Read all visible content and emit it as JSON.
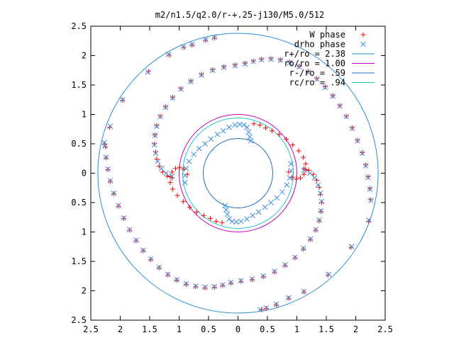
{
  "chart_data": {
    "type": "scatter",
    "title": "m2/n1.5/q2.0/r-+.25-j130/M5.0/512",
    "xlabel": "",
    "ylabel": "",
    "xlim": [
      -2.5,
      2.5
    ],
    "ylim": [
      -2.5,
      2.5
    ],
    "grid": false,
    "legend_position": "top-right",
    "x_tick_labels": [
      "2.5",
      "2",
      "1.5",
      "1",
      "0.5",
      "0",
      "0.5",
      "1",
      "1.5",
      "2",
      "2.5"
    ],
    "y_tick_labels": [
      "2.5",
      "2",
      "1.5",
      "1",
      "0.5",
      "0",
      "0.5",
      "1",
      "1.5",
      "2",
      "2.5"
    ],
    "series": [
      {
        "name": "W phase",
        "marker": "plus",
        "color": "#ff0000",
        "points": [
          [
            0.27,
            0.84
          ],
          [
            0.37,
            0.82
          ],
          [
            0.47,
            0.77
          ],
          [
            0.58,
            0.72
          ],
          [
            0.7,
            0.66
          ],
          [
            0.82,
            0.58
          ],
          [
            0.93,
            0.48
          ],
          [
            1.03,
            0.38
          ],
          [
            1.11,
            0.27
          ],
          [
            1.15,
            0.16
          ],
          [
            1.15,
            0.06
          ],
          [
            1.12,
            -0.02
          ],
          [
            1.06,
            -0.08
          ],
          [
            0.99,
            -0.1
          ],
          [
            0.92,
            -0.07
          ],
          [
            0.86,
            0.02
          ],
          [
            1.12,
            0.08
          ],
          [
            1.2,
            0.05
          ],
          [
            1.28,
            -0.02
          ],
          [
            1.34,
            -0.12
          ],
          [
            1.38,
            -0.24
          ],
          [
            1.4,
            -0.36
          ],
          [
            1.42,
            -0.5
          ],
          [
            1.41,
            -0.65
          ],
          [
            1.38,
            -0.81
          ],
          [
            1.32,
            -0.97
          ],
          [
            1.23,
            -1.13
          ],
          [
            1.11,
            -1.29
          ],
          [
            0.97,
            -1.44
          ],
          [
            0.8,
            -1.57
          ],
          [
            0.62,
            -1.68
          ],
          [
            0.43,
            -1.76
          ],
          [
            0.24,
            -1.81
          ],
          [
            0.05,
            -1.84
          ],
          [
            -0.12,
            -1.87
          ],
          [
            -0.26,
            -1.91
          ],
          [
            -0.4,
            -1.94
          ],
          [
            -0.56,
            -1.95
          ],
          [
            -0.72,
            -1.93
          ],
          [
            -0.88,
            -1.89
          ],
          [
            -1.04,
            -1.82
          ],
          [
            -1.19,
            -1.73
          ],
          [
            -1.34,
            -1.61
          ],
          [
            -1.48,
            -1.47
          ],
          [
            -1.61,
            -1.32
          ],
          [
            -1.73,
            -1.15
          ],
          [
            -1.84,
            -0.97
          ],
          [
            -1.94,
            -0.77
          ],
          [
            -2.03,
            -0.56
          ],
          [
            -2.11,
            -0.35
          ],
          [
            -2.17,
            -0.14
          ],
          [
            -2.21,
            0.06
          ],
          [
            -2.24,
            0.26
          ],
          [
            -2.25,
            0.45
          ],
          [
            -0.27,
            -0.84
          ],
          [
            -0.37,
            -0.82
          ],
          [
            -0.47,
            -0.77
          ],
          [
            -0.58,
            -0.72
          ],
          [
            -0.7,
            -0.66
          ],
          [
            -0.82,
            -0.58
          ],
          [
            -0.93,
            -0.48
          ],
          [
            -1.03,
            -0.38
          ],
          [
            -1.11,
            -0.27
          ],
          [
            -1.15,
            -0.16
          ],
          [
            -1.15,
            -0.06
          ],
          [
            -1.12,
            0.02
          ],
          [
            -1.06,
            0.08
          ],
          [
            -0.99,
            0.1
          ],
          [
            -0.92,
            0.07
          ],
          [
            -0.86,
            -0.02
          ],
          [
            -1.12,
            -0.08
          ],
          [
            -1.2,
            -0.05
          ],
          [
            -1.28,
            0.02
          ],
          [
            -1.34,
            0.12
          ],
          [
            -1.38,
            0.24
          ],
          [
            -1.4,
            0.36
          ],
          [
            -1.42,
            0.5
          ],
          [
            -1.41,
            0.65
          ],
          [
            -1.38,
            0.81
          ],
          [
            -1.32,
            0.97
          ],
          [
            -1.23,
            1.13
          ],
          [
            -1.11,
            1.29
          ],
          [
            -0.97,
            1.44
          ],
          [
            -0.8,
            1.57
          ],
          [
            -0.62,
            1.68
          ],
          [
            -0.43,
            1.76
          ],
          [
            -0.24,
            1.81
          ],
          [
            -0.05,
            1.84
          ],
          [
            0.12,
            1.87
          ],
          [
            0.26,
            1.91
          ],
          [
            0.4,
            1.94
          ],
          [
            0.56,
            1.95
          ],
          [
            0.72,
            1.93
          ],
          [
            0.88,
            1.89
          ],
          [
            1.04,
            1.82
          ],
          [
            1.19,
            1.73
          ],
          [
            1.34,
            1.61
          ],
          [
            1.48,
            1.47
          ],
          [
            1.61,
            1.32
          ],
          [
            1.73,
            1.15
          ],
          [
            1.84,
            0.97
          ],
          [
            1.94,
            0.77
          ],
          [
            2.03,
            0.56
          ],
          [
            2.11,
            0.35
          ],
          [
            2.17,
            0.14
          ],
          [
            2.21,
            -0.06
          ],
          [
            2.24,
            -0.26
          ],
          [
            2.25,
            -0.45
          ],
          [
            2.22,
            -0.82
          ],
          [
            1.92,
            -1.26
          ],
          [
            1.53,
            -1.73
          ],
          [
            1.12,
            -2.02
          ],
          [
            0.86,
            -2.13
          ],
          [
            0.65,
            -2.24
          ],
          [
            0.48,
            -2.3
          ],
          [
            0.4,
            -2.32
          ],
          [
            -2.27,
            0.5
          ],
          [
            -2.18,
            0.78
          ],
          [
            -1.96,
            1.24
          ],
          [
            -1.52,
            1.73
          ],
          [
            -1.17,
            2.01
          ],
          [
            -0.92,
            2.14
          ],
          [
            -0.78,
            2.18
          ],
          [
            -0.55,
            2.26
          ],
          [
            -0.4,
            2.3
          ]
        ]
      },
      {
        "name": "drho phase",
        "marker": "cross",
        "color": "#3b8fe0",
        "points": [
          [
            0.22,
            0.55
          ],
          [
            0.2,
            0.62
          ],
          [
            0.18,
            0.7
          ],
          [
            0.15,
            0.78
          ],
          [
            0.1,
            0.82
          ],
          [
            0.03,
            0.83
          ],
          [
            -0.05,
            0.82
          ],
          [
            -0.15,
            0.78
          ],
          [
            -0.25,
            0.72
          ],
          [
            -0.35,
            0.66
          ],
          [
            -0.46,
            0.58
          ],
          [
            -0.56,
            0.5
          ],
          [
            -0.66,
            0.42
          ],
          [
            -0.75,
            0.32
          ],
          [
            -0.83,
            0.2
          ],
          [
            -0.88,
            0.08
          ],
          [
            -0.9,
            -0.04
          ],
          [
            -0.9,
            -0.16
          ],
          [
            -0.22,
            -0.55
          ],
          [
            -0.2,
            -0.62
          ],
          [
            -0.18,
            -0.7
          ],
          [
            -0.15,
            -0.78
          ],
          [
            -0.1,
            -0.82
          ],
          [
            -0.03,
            -0.83
          ],
          [
            0.05,
            -0.82
          ],
          [
            0.15,
            -0.78
          ],
          [
            0.25,
            -0.72
          ],
          [
            0.35,
            -0.66
          ],
          [
            0.46,
            -0.58
          ],
          [
            0.56,
            -0.5
          ],
          [
            0.66,
            -0.42
          ],
          [
            0.75,
            -0.32
          ],
          [
            0.83,
            -0.2
          ],
          [
            0.88,
            -0.08
          ],
          [
            0.9,
            0.04
          ],
          [
            0.9,
            0.16
          ],
          [
            1.12,
            0.05
          ],
          [
            1.22,
            0.0
          ],
          [
            1.3,
            -0.08
          ],
          [
            1.36,
            -0.2
          ],
          [
            1.4,
            -0.34
          ],
          [
            1.42,
            -0.48
          ],
          [
            1.41,
            -0.64
          ],
          [
            1.38,
            -0.8
          ],
          [
            1.32,
            -0.96
          ],
          [
            1.23,
            -1.12
          ],
          [
            1.11,
            -1.28
          ],
          [
            0.97,
            -1.43
          ],
          [
            0.8,
            -1.56
          ],
          [
            0.62,
            -1.67
          ],
          [
            0.43,
            -1.75
          ],
          [
            0.24,
            -1.8
          ],
          [
            0.05,
            -1.83
          ],
          [
            -0.12,
            -1.86
          ],
          [
            -0.26,
            -1.9
          ],
          [
            -0.4,
            -1.93
          ],
          [
            -0.56,
            -1.94
          ],
          [
            -0.72,
            -1.92
          ],
          [
            -0.88,
            -1.88
          ],
          [
            -1.04,
            -1.81
          ],
          [
            -1.19,
            -1.72
          ],
          [
            -1.34,
            -1.6
          ],
          [
            -1.48,
            -1.46
          ],
          [
            -1.61,
            -1.31
          ],
          [
            -1.73,
            -1.14
          ],
          [
            -1.84,
            -0.96
          ],
          [
            -1.94,
            -0.76
          ],
          [
            -2.03,
            -0.55
          ],
          [
            -2.11,
            -0.34
          ],
          [
            -2.17,
            -0.13
          ],
          [
            -2.21,
            0.07
          ],
          [
            -2.24,
            0.27
          ],
          [
            -2.26,
            0.46
          ],
          [
            -1.12,
            -0.05
          ],
          [
            -1.22,
            0.0
          ],
          [
            -1.3,
            0.08
          ],
          [
            -1.36,
            0.2
          ],
          [
            -1.4,
            0.34
          ],
          [
            -1.42,
            0.48
          ],
          [
            -1.41,
            0.64
          ],
          [
            -1.38,
            0.8
          ],
          [
            -1.32,
            0.96
          ],
          [
            -1.23,
            1.12
          ],
          [
            -1.11,
            1.28
          ],
          [
            -0.97,
            1.43
          ],
          [
            -0.8,
            1.56
          ],
          [
            -0.62,
            1.67
          ],
          [
            -0.43,
            1.75
          ],
          [
            -0.24,
            1.8
          ],
          [
            -0.05,
            1.83
          ],
          [
            0.12,
            1.86
          ],
          [
            0.26,
            1.9
          ],
          [
            0.4,
            1.93
          ],
          [
            0.56,
            1.94
          ],
          [
            0.72,
            1.92
          ],
          [
            0.88,
            1.88
          ],
          [
            1.04,
            1.81
          ],
          [
            1.19,
            1.72
          ],
          [
            1.34,
            1.6
          ],
          [
            1.48,
            1.46
          ],
          [
            1.61,
            1.31
          ],
          [
            1.73,
            1.14
          ],
          [
            1.84,
            0.96
          ],
          [
            1.94,
            0.76
          ],
          [
            2.03,
            0.55
          ],
          [
            2.11,
            0.34
          ],
          [
            2.17,
            0.13
          ],
          [
            2.21,
            -0.07
          ],
          [
            2.24,
            -0.27
          ],
          [
            2.26,
            -0.46
          ],
          [
            2.22,
            -0.8
          ],
          [
            1.93,
            -1.25
          ],
          [
            1.54,
            -1.72
          ],
          [
            1.12,
            -2.01
          ],
          [
            0.86,
            -2.12
          ],
          [
            0.65,
            -2.23
          ],
          [
            0.48,
            -2.29
          ],
          [
            0.38,
            -2.32
          ],
          [
            -2.27,
            0.52
          ],
          [
            -2.17,
            0.8
          ],
          [
            -1.96,
            1.25
          ],
          [
            -1.53,
            1.72
          ],
          [
            -1.18,
            2.02
          ],
          [
            -0.93,
            2.15
          ],
          [
            -0.78,
            2.19
          ],
          [
            -0.55,
            2.27
          ],
          [
            -0.4,
            2.31
          ]
        ]
      }
    ],
    "circles": [
      {
        "name": "r+/ro = 2.38",
        "r": 2.38,
        "color": "#2a8fd8"
      },
      {
        "name": "ro/ro = 1.00",
        "r": 1.0,
        "color": "#c000c0"
      },
      {
        "name": "r-/ro = .59",
        "r": 0.59,
        "color": "#1f6fc0"
      },
      {
        "name": "rc/ro = .94",
        "r": 0.94,
        "color": "#20c8c8"
      }
    ]
  }
}
